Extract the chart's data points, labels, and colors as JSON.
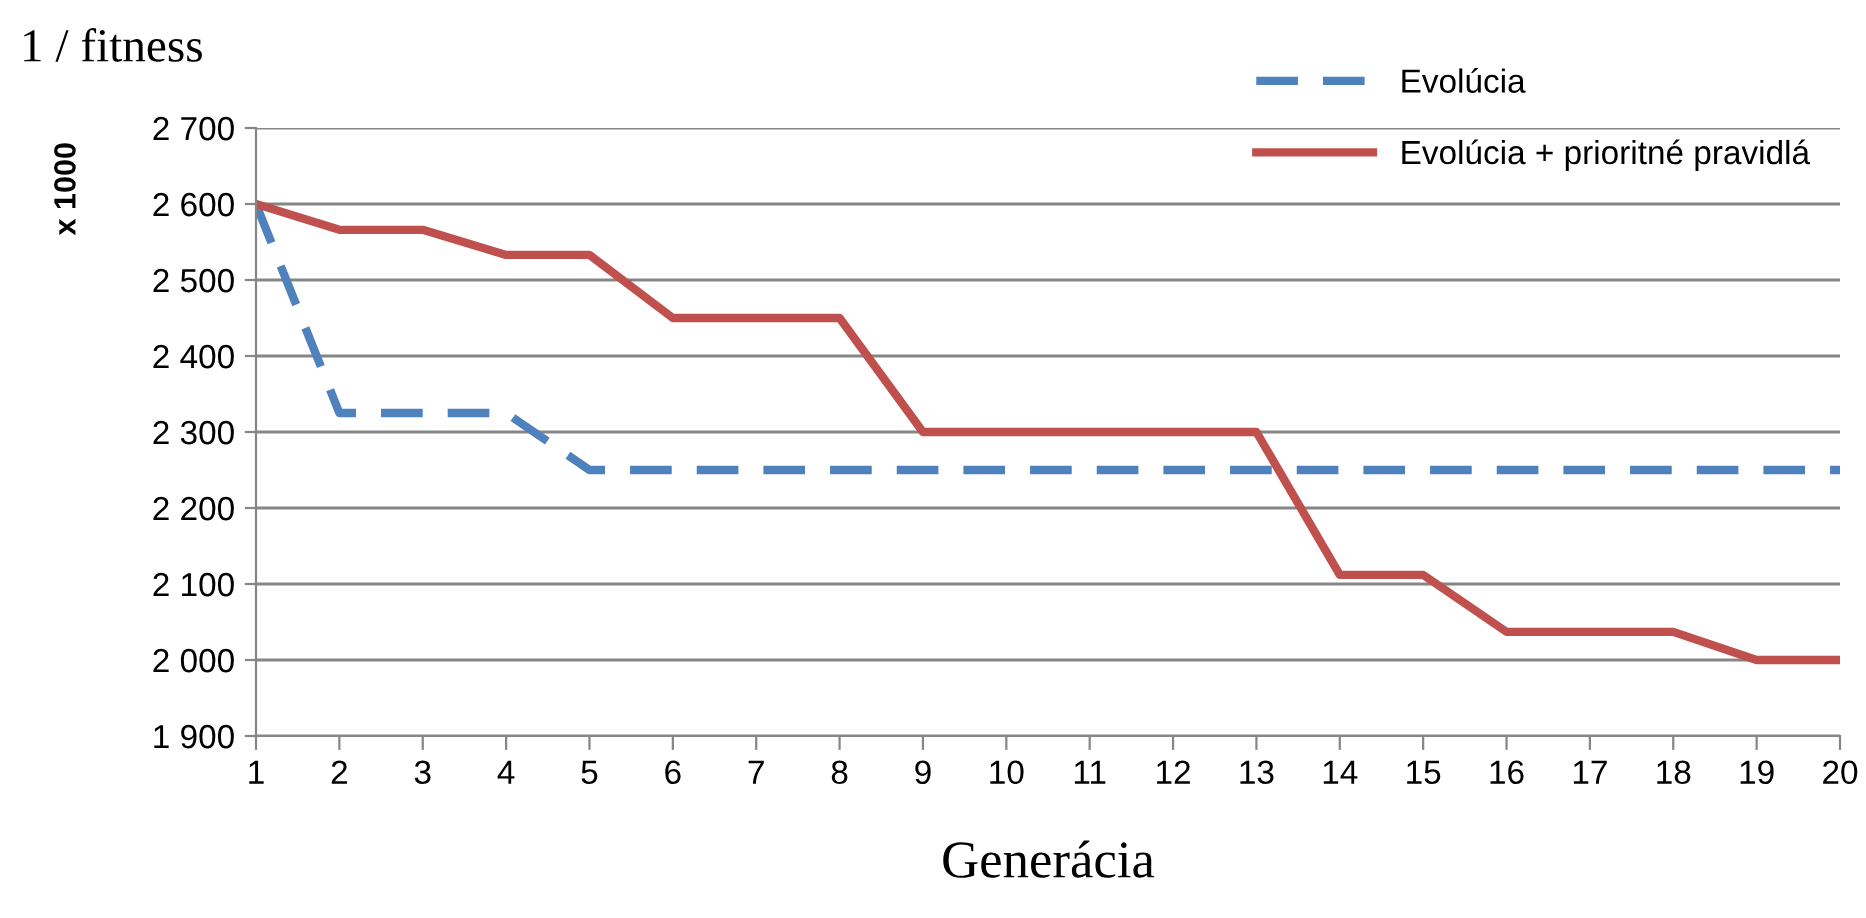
{
  "chart_data": {
    "type": "line",
    "title": "1 / fitness",
    "ylabel": "x 1000",
    "xlabel": "Generácia",
    "categories": [
      "1",
      "2",
      "3",
      "4",
      "5",
      "6",
      "7",
      "8",
      "9",
      "10",
      "11",
      "12",
      "13",
      "14",
      "15",
      "16",
      "17",
      "18",
      "19",
      "20"
    ],
    "series": [
      {
        "name": "Evolúcia",
        "color": "#4f81bd",
        "line_style": "dashed",
        "values": [
          2600,
          2325,
          2325,
          2325,
          2250,
          2250,
          2250,
          2250,
          2250,
          2250,
          2250,
          2250,
          2250,
          2250,
          2250,
          2250,
          2250,
          2250,
          2250,
          2250
        ]
      },
      {
        "name": "Evolúcia + prioritné pravidlá",
        "color": "#c0504d",
        "line_style": "solid",
        "values": [
          2600,
          2566,
          2566,
          2533,
          2533,
          2450,
          2450,
          2450,
          2300,
          2300,
          2300,
          2300,
          2300,
          2112,
          2112,
          2037,
          2037,
          2037,
          2000,
          2000
        ]
      }
    ],
    "ylim": [
      1900,
      2700
    ],
    "yticks": [
      {
        "value": 1900,
        "label": "1 900"
      },
      {
        "value": 2000,
        "label": "2 000"
      },
      {
        "value": 2100,
        "label": "2 100"
      },
      {
        "value": 2200,
        "label": "2 200"
      },
      {
        "value": 2300,
        "label": "2 300"
      },
      {
        "value": 2400,
        "label": "2 400"
      },
      {
        "value": 2500,
        "label": "2 500"
      },
      {
        "value": 2600,
        "label": "2 600"
      },
      {
        "value": 2700,
        "label": "2 700"
      }
    ],
    "grid": "y",
    "legend": "top right",
    "marker": "none"
  }
}
